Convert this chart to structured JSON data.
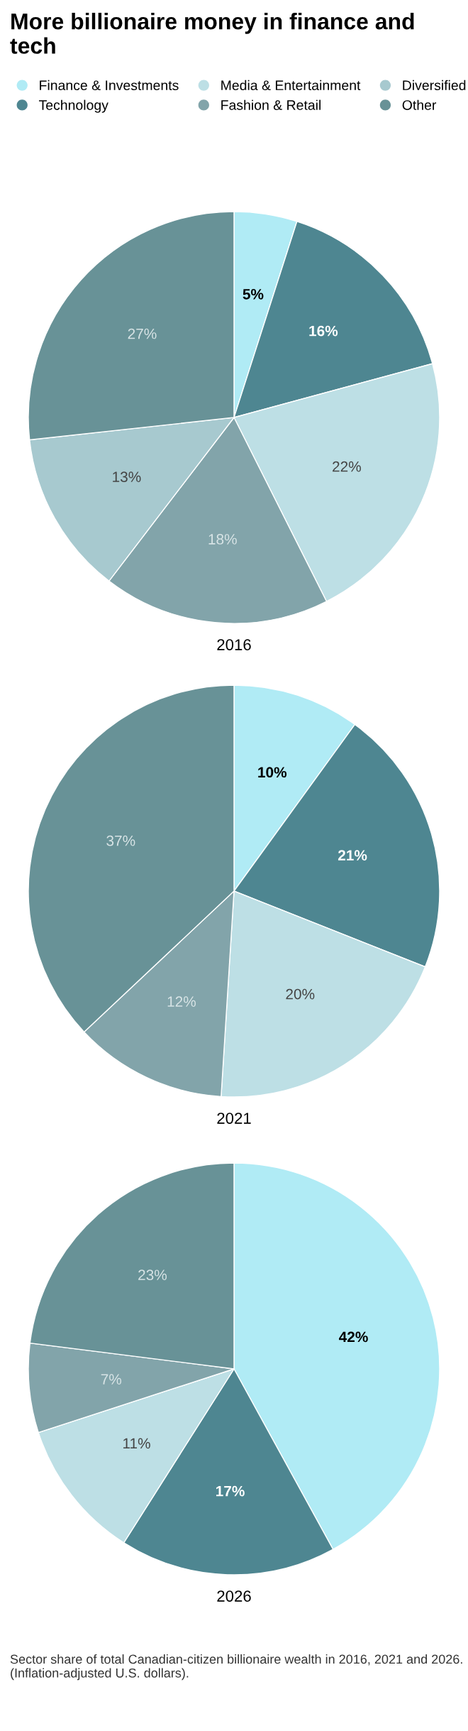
{
  "chart_data": [
    {
      "type": "pie",
      "title": "More billionaire money in finance and tech",
      "xlabel": "2016",
      "legend": "top left",
      "categories": [
        "Finance & Investments",
        "Technology",
        "Media & Entertainment",
        "Fashion & Retail",
        "Diversified",
        "Other"
      ],
      "values": [
        5,
        16,
        22,
        18,
        13,
        27
      ],
      "colors": [
        "#b0ebf5",
        "#4e8691",
        "#bddfe5",
        "#82a4aa",
        "#a7c9cf",
        "#689297"
      ],
      "value_labels": [
        "5%",
        "16%",
        "22%",
        "18%",
        "13%",
        "27%"
      ]
    },
    {
      "type": "pie",
      "xlabel": "2021",
      "categories": [
        null,
        null,
        null,
        null,
        null
      ],
      "values": [
        10,
        21,
        20,
        12,
        37
      ],
      "colors": [
        "#b0ebf5",
        "#4e8691",
        "#bddfe5",
        "#82a4aa",
        "#689297"
      ],
      "value_labels": [
        "10%",
        "21%",
        "20%",
        "12%",
        "37%"
      ]
    },
    {
      "type": "pie",
      "xlabel": "2026",
      "categories": [
        null,
        null,
        null,
        null,
        null
      ],
      "values": [
        42,
        17,
        11,
        7,
        23
      ],
      "colors": [
        "#b0ebf5",
        "#4e8691",
        "#bddfe5",
        "#82a4aa",
        "#689297"
      ],
      "value_labels": [
        "42%",
        "17%",
        "11%",
        "7%",
        "23%"
      ],
      "annotations": [
        "Sector share of total Canadian-citizen billionaire wealth in 2016, 2021 and 2026. (Inflation-adjusted U.S. dollars)."
      ]
    }
  ]
}
